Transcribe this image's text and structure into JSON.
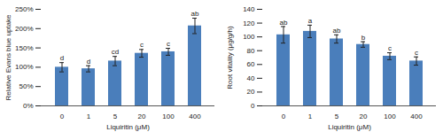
{
  "chart_data": [
    {
      "type": "bar",
      "x_label": "Liquiritin (μM)",
      "y_label": "Relative Evans blue uptake",
      "categories": [
        "0",
        "1",
        "5",
        "20",
        "100",
        "400"
      ],
      "values": [
        100,
        96,
        116,
        136,
        140,
        207
      ],
      "errors": [
        12,
        8,
        12,
        10,
        9,
        20
      ],
      "annotations": [
        "d",
        "d",
        "cd",
        "c",
        "c",
        "ab"
      ],
      "color": "#4a7ebb",
      "ylim": [
        0,
        250
      ],
      "yticks": [
        {
          "value": 0,
          "label": "0%"
        },
        {
          "value": 50,
          "label": "50%"
        },
        {
          "value": 100,
          "label": "100%"
        },
        {
          "value": 150,
          "label": "150%"
        },
        {
          "value": 200,
          "label": "200%"
        },
        {
          "value": 250,
          "label": "250%"
        }
      ],
      "grid": false
    },
    {
      "type": "bar",
      "x_label": "Liquiritin (μM)",
      "y_label": "Root vitality (μg/g/h)",
      "categories": [
        "0",
        "1",
        "5",
        "20",
        "100",
        "400"
      ],
      "values": [
        103,
        108,
        97,
        89,
        72,
        65
      ],
      "errors": [
        12,
        9,
        6,
        4,
        5,
        6
      ],
      "annotations": [
        "ab",
        "a",
        "ab",
        "b",
        "c",
        "c"
      ],
      "color": "#4a7ebb",
      "ylim": [
        0,
        140
      ],
      "yticks": [
        0,
        20,
        40,
        60,
        80,
        100,
        120,
        140
      ],
      "grid": false
    }
  ]
}
